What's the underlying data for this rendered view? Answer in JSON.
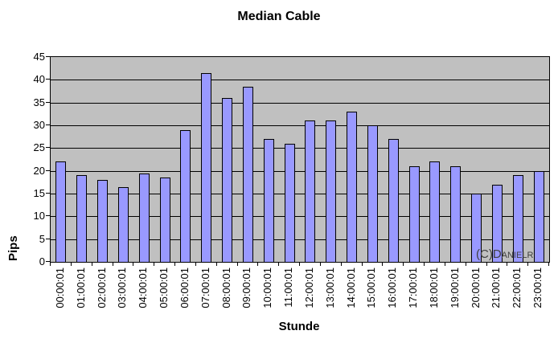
{
  "chart_data": {
    "type": "bar",
    "title": "Median Cable",
    "xlabel": "Stunde",
    "ylabel": "Pips",
    "watermark": "(C)Danielr",
    "categories": [
      "00:00:01",
      "01:00:01",
      "02:00:01",
      "03:00:01",
      "04:00:01",
      "05:00:01",
      "06:00:01",
      "07:00:01",
      "08:00:01",
      "09:00:01",
      "10:00:01",
      "11:00:01",
      "12:00:01",
      "13:00:01",
      "14:00:01",
      "15:00:01",
      "16:00:01",
      "17:00:01",
      "18:00:01",
      "19:00:01",
      "20:00:01",
      "21:00:01",
      "22:00:01",
      "23:00:01"
    ],
    "values": [
      22,
      19,
      18,
      16.5,
      19.5,
      18.5,
      29,
      41.5,
      36,
      38.5,
      27,
      26,
      31,
      31,
      33,
      30,
      27,
      21,
      22,
      21,
      15,
      17,
      19,
      20
    ],
    "ylim": [
      0,
      45
    ],
    "yticks": [
      0,
      5,
      10,
      15,
      20,
      25,
      30,
      35,
      40,
      45
    ],
    "grid": true,
    "legend": false,
    "colors": {
      "bar_fill": "#9999ff",
      "bar_border": "#000000",
      "plot_bg": "#c0c0c0",
      "gridline": "#000000",
      "page_bg": "#ffffff",
      "watermark": "#404040"
    }
  }
}
